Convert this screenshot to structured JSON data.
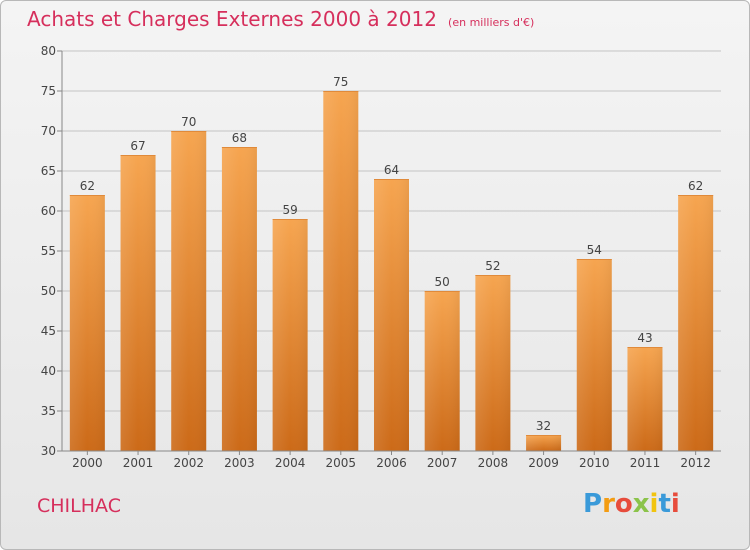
{
  "title": "Achats et Charges Externes 2000 à 2012",
  "unit_label": "(en milliers d'€)",
  "commune": "CHILHAC",
  "logo_text": "Proxiti",
  "colors": {
    "title": "#d62f5c",
    "bar_top": "#f6a550",
    "bar_bottom": "#cc6a18"
  },
  "chart_data": {
    "type": "bar",
    "title": "Achats et Charges Externes 2000 à 2012",
    "subtitle": "(en milliers d'€)",
    "categories": [
      "2000",
      "2001",
      "2002",
      "2003",
      "2004",
      "2005",
      "2006",
      "2007",
      "2008",
      "2009",
      "2010",
      "2011",
      "2012"
    ],
    "values": [
      62,
      67,
      70,
      68,
      59,
      75,
      64,
      50,
      52,
      32,
      54,
      43,
      62
    ],
    "xlabel": "",
    "ylabel": "",
    "ylim": [
      30,
      80
    ],
    "yticks": [
      30,
      35,
      40,
      45,
      50,
      55,
      60,
      65,
      70,
      75,
      80
    ],
    "grid": true,
    "data_labels": true
  }
}
